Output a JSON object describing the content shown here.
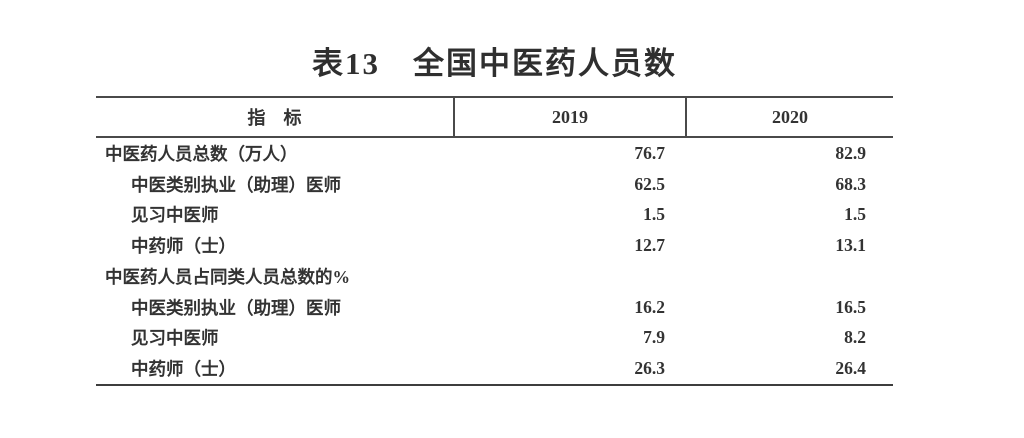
{
  "title": "表13　全国中医药人员数",
  "table": {
    "columns": [
      "指　标",
      "2019",
      "2020"
    ],
    "rows": [
      {
        "label": "中医药人员总数（万人）",
        "v2019": "76.7",
        "v2020": "82.9"
      },
      {
        "label": "中医类别执业（助理）医师",
        "v2019": "62.5",
        "v2020": "68.3"
      },
      {
        "label": "见习中医师",
        "v2019": "1.5",
        "v2020": "1.5"
      },
      {
        "label": "中药师（士）",
        "v2019": "12.7",
        "v2020": "13.1"
      },
      {
        "label": "中医药人员占同类人员总数的%",
        "v2019": "",
        "v2020": ""
      },
      {
        "label": "中医类别执业（助理）医师",
        "v2019": "16.2",
        "v2020": "16.5"
      },
      {
        "label": "见习中医师",
        "v2019": "7.9",
        "v2020": "8.2"
      },
      {
        "label": "中药师（士）",
        "v2019": "26.3",
        "v2020": "26.4"
      }
    ]
  },
  "chart_data": {
    "type": "table",
    "title": "表13　全国中医药人员数",
    "categories": [
      "中医药人员总数（万人）",
      "中医类别执业（助理）医师",
      "见习中医师",
      "中药师（士）",
      "中医药人员占同类人员总数的%",
      "中医类别执业（助理）医师",
      "见习中医师",
      "中药师（士）"
    ],
    "series": [
      {
        "name": "2019",
        "values": [
          76.7,
          62.5,
          1.5,
          12.7,
          null,
          16.2,
          7.9,
          26.3
        ]
      },
      {
        "name": "2020",
        "values": [
          82.9,
          68.3,
          1.5,
          13.1,
          null,
          16.5,
          8.2,
          26.4
        ]
      }
    ]
  },
  "colors": {
    "text": "#333333",
    "rule": "#4a4a4a",
    "background": "#ffffff"
  }
}
